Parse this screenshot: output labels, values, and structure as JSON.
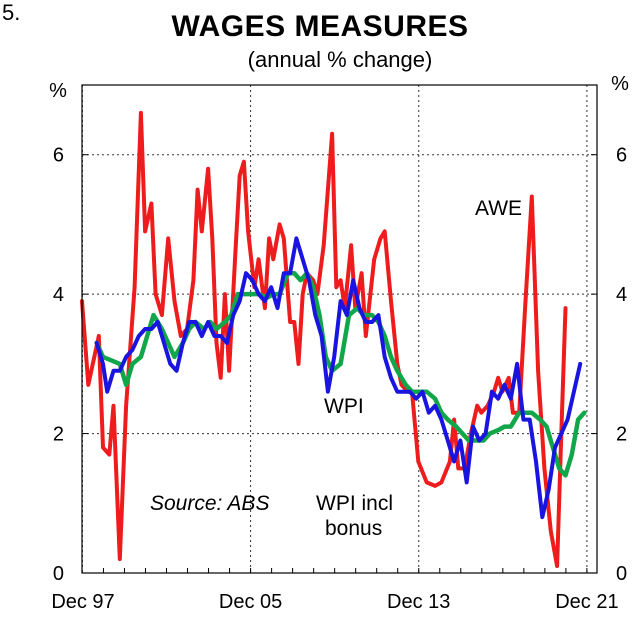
{
  "figure_number": "5.",
  "chart_data": {
    "type": "line",
    "title": "WAGES MEASURES",
    "subtitle": "(annual % change)",
    "unit_left": "%",
    "unit_right": "%",
    "x_tick_labels": [
      "Dec 97",
      "Dec 05",
      "Dec 13",
      "Dec 21"
    ],
    "x_tick_years": [
      1997.92,
      2005.92,
      2013.92,
      2021.92
    ],
    "x_range": [
      1997.9,
      2022.4
    ],
    "y_ticks": [
      "0",
      "2",
      "4",
      "6"
    ],
    "ylim": [
      0,
      7
    ],
    "grid": "horizontal dashed",
    "source": "Source: ABS",
    "series": [
      {
        "name": "AWE",
        "color": "#ee1c1c",
        "points": [
          [
            1997.9,
            3.9
          ],
          [
            1998.2,
            2.7
          ],
          [
            1998.7,
            3.4
          ],
          [
            1998.9,
            1.8
          ],
          [
            1999.2,
            1.7
          ],
          [
            1999.4,
            2.4
          ],
          [
            1999.7,
            0.2
          ],
          [
            2000.0,
            2.4
          ],
          [
            2000.4,
            4.1
          ],
          [
            2000.7,
            6.6
          ],
          [
            2000.9,
            4.9
          ],
          [
            2001.2,
            5.3
          ],
          [
            2001.4,
            4.0
          ],
          [
            2001.7,
            3.7
          ],
          [
            2002.0,
            4.8
          ],
          [
            2002.3,
            3.9
          ],
          [
            2002.6,
            3.4
          ],
          [
            2002.9,
            3.5
          ],
          [
            2003.2,
            4.2
          ],
          [
            2003.4,
            5.5
          ],
          [
            2003.6,
            4.9
          ],
          [
            2003.9,
            5.8
          ],
          [
            2004.1,
            4.8
          ],
          [
            2004.3,
            3.3
          ],
          [
            2004.5,
            2.8
          ],
          [
            2004.7,
            4.0
          ],
          [
            2004.9,
            2.9
          ],
          [
            2005.2,
            4.6
          ],
          [
            2005.4,
            5.7
          ],
          [
            2005.6,
            5.9
          ],
          [
            2005.8,
            4.9
          ],
          [
            2006.1,
            4.1
          ],
          [
            2006.3,
            4.5
          ],
          [
            2006.6,
            3.8
          ],
          [
            2006.8,
            4.8
          ],
          [
            2007.0,
            4.5
          ],
          [
            2007.3,
            5.0
          ],
          [
            2007.5,
            4.8
          ],
          [
            2007.8,
            3.6
          ],
          [
            2008.0,
            3.6
          ],
          [
            2008.2,
            3.0
          ],
          [
            2008.4,
            4.0
          ],
          [
            2008.6,
            4.3
          ],
          [
            2008.9,
            4.2
          ],
          [
            2009.1,
            4.0
          ],
          [
            2009.4,
            4.7
          ],
          [
            2009.6,
            5.5
          ],
          [
            2009.8,
            6.3
          ],
          [
            2010.0,
            4.1
          ],
          [
            2010.2,
            4.2
          ],
          [
            2010.4,
            3.8
          ],
          [
            2010.7,
            4.7
          ],
          [
            2010.9,
            3.8
          ],
          [
            2011.2,
            4.3
          ],
          [
            2011.4,
            3.4
          ],
          [
            2011.8,
            4.5
          ],
          [
            2012.1,
            4.8
          ],
          [
            2012.3,
            4.9
          ],
          [
            2012.6,
            3.9
          ],
          [
            2012.9,
            3.0
          ],
          [
            2013.1,
            2.7
          ],
          [
            2013.4,
            2.6
          ],
          [
            2013.6,
            2.6
          ],
          [
            2013.9,
            1.6
          ],
          [
            2014.3,
            1.3
          ],
          [
            2014.7,
            1.25
          ],
          [
            2015.0,
            1.3
          ],
          [
            2015.4,
            1.6
          ],
          [
            2015.6,
            2.2
          ],
          [
            2015.8,
            1.5
          ],
          [
            2016.1,
            1.5
          ],
          [
            2016.4,
            2.0
          ],
          [
            2016.7,
            2.4
          ],
          [
            2016.9,
            2.3
          ],
          [
            2017.2,
            2.4
          ],
          [
            2017.5,
            2.6
          ],
          [
            2017.7,
            2.8
          ],
          [
            2017.9,
            2.6
          ],
          [
            2018.2,
            2.8
          ],
          [
            2018.4,
            2.3
          ],
          [
            2018.7,
            2.3
          ],
          [
            2019.0,
            3.9
          ],
          [
            2019.3,
            5.4
          ],
          [
            2019.6,
            2.9
          ],
          [
            2019.9,
            1.5
          ],
          [
            2020.2,
            0.6
          ],
          [
            2020.5,
            0.1
          ],
          [
            2020.7,
            2.0
          ],
          [
            2020.9,
            3.8
          ]
        ]
      },
      {
        "name": "WPI",
        "color": "#12a64a",
        "points": [
          [
            1998.6,
            3.3
          ],
          [
            1998.9,
            3.1
          ],
          [
            1999.3,
            3.05
          ],
          [
            1999.7,
            3.0
          ],
          [
            2000.0,
            2.7
          ],
          [
            2000.3,
            3.0
          ],
          [
            2000.7,
            3.1
          ],
          [
            2001.0,
            3.4
          ],
          [
            2001.3,
            3.7
          ],
          [
            2001.7,
            3.5
          ],
          [
            2002.0,
            3.3
          ],
          [
            2002.3,
            3.1
          ],
          [
            2002.7,
            3.3
          ],
          [
            2003.0,
            3.5
          ],
          [
            2003.3,
            3.6
          ],
          [
            2003.7,
            3.5
          ],
          [
            2004.0,
            3.6
          ],
          [
            2004.3,
            3.5
          ],
          [
            2004.7,
            3.6
          ],
          [
            2005.0,
            3.7
          ],
          [
            2005.3,
            4.0
          ],
          [
            2005.7,
            4.0
          ],
          [
            2006.0,
            4.0
          ],
          [
            2006.3,
            4.0
          ],
          [
            2006.7,
            3.95
          ],
          [
            2007.0,
            4.0
          ],
          [
            2007.3,
            4.0
          ],
          [
            2007.7,
            4.3
          ],
          [
            2008.0,
            4.3
          ],
          [
            2008.3,
            4.2
          ],
          [
            2008.6,
            4.3
          ],
          [
            2008.9,
            4.1
          ],
          [
            2009.2,
            3.7
          ],
          [
            2009.5,
            3.1
          ],
          [
            2009.8,
            2.9
          ],
          [
            2010.2,
            3.0
          ],
          [
            2010.6,
            3.7
          ],
          [
            2011.0,
            3.8
          ],
          [
            2011.3,
            3.7
          ],
          [
            2011.7,
            3.7
          ],
          [
            2012.0,
            3.6
          ],
          [
            2012.3,
            3.4
          ],
          [
            2012.6,
            3.1
          ],
          [
            2012.9,
            2.9
          ],
          [
            2013.3,
            2.7
          ],
          [
            2013.6,
            2.6
          ],
          [
            2013.9,
            2.6
          ],
          [
            2014.3,
            2.6
          ],
          [
            2014.7,
            2.5
          ],
          [
            2015.0,
            2.3
          ],
          [
            2015.3,
            2.2
          ],
          [
            2015.7,
            2.1
          ],
          [
            2016.0,
            2.0
          ],
          [
            2016.3,
            1.9
          ],
          [
            2016.7,
            1.9
          ],
          [
            2017.0,
            1.9
          ],
          [
            2017.3,
            2.0
          ],
          [
            2017.7,
            2.05
          ],
          [
            2018.0,
            2.1
          ],
          [
            2018.3,
            2.1
          ],
          [
            2018.7,
            2.3
          ],
          [
            2019.0,
            2.3
          ],
          [
            2019.3,
            2.3
          ],
          [
            2019.7,
            2.2
          ],
          [
            2020.0,
            2.1
          ],
          [
            2020.3,
            1.8
          ],
          [
            2020.6,
            1.5
          ],
          [
            2020.9,
            1.4
          ],
          [
            2021.2,
            1.7
          ],
          [
            2021.5,
            2.2
          ],
          [
            2021.8,
            2.3
          ]
        ]
      },
      {
        "name": "WPI incl bonus",
        "color": "#1a14e0",
        "points": [
          [
            1998.6,
            3.3
          ],
          [
            1998.9,
            3.0
          ],
          [
            1999.1,
            2.6
          ],
          [
            1999.4,
            2.9
          ],
          [
            1999.7,
            2.9
          ],
          [
            2000.0,
            3.1
          ],
          [
            2000.3,
            3.2
          ],
          [
            2000.6,
            3.4
          ],
          [
            2000.9,
            3.5
          ],
          [
            2001.2,
            3.5
          ],
          [
            2001.5,
            3.6
          ],
          [
            2001.8,
            3.3
          ],
          [
            2002.1,
            3.0
          ],
          [
            2002.4,
            2.9
          ],
          [
            2002.7,
            3.3
          ],
          [
            2003.0,
            3.6
          ],
          [
            2003.3,
            3.6
          ],
          [
            2003.6,
            3.4
          ],
          [
            2003.9,
            3.6
          ],
          [
            2004.2,
            3.4
          ],
          [
            2004.5,
            3.4
          ],
          [
            2004.8,
            3.3
          ],
          [
            2005.1,
            3.7
          ],
          [
            2005.4,
            3.9
          ],
          [
            2005.7,
            4.3
          ],
          [
            2006.0,
            4.2
          ],
          [
            2006.3,
            4.0
          ],
          [
            2006.6,
            3.9
          ],
          [
            2006.9,
            4.1
          ],
          [
            2007.2,
            3.8
          ],
          [
            2007.5,
            4.3
          ],
          [
            2007.8,
            4.3
          ],
          [
            2008.1,
            4.8
          ],
          [
            2008.4,
            4.5
          ],
          [
            2008.7,
            4.2
          ],
          [
            2009.0,
            3.7
          ],
          [
            2009.3,
            3.4
          ],
          [
            2009.6,
            2.6
          ],
          [
            2009.9,
            3.1
          ],
          [
            2010.2,
            3.9
          ],
          [
            2010.5,
            3.7
          ],
          [
            2010.8,
            4.2
          ],
          [
            2011.1,
            3.8
          ],
          [
            2011.4,
            3.6
          ],
          [
            2011.7,
            3.6
          ],
          [
            2012.0,
            3.7
          ],
          [
            2012.3,
            3.1
          ],
          [
            2012.6,
            2.8
          ],
          [
            2012.9,
            2.6
          ],
          [
            2013.2,
            2.6
          ],
          [
            2013.5,
            2.6
          ],
          [
            2013.8,
            2.5
          ],
          [
            2014.1,
            2.6
          ],
          [
            2014.4,
            2.3
          ],
          [
            2014.7,
            2.4
          ],
          [
            2015.0,
            2.2
          ],
          [
            2015.3,
            1.9
          ],
          [
            2015.6,
            1.6
          ],
          [
            2015.9,
            1.9
          ],
          [
            2016.2,
            1.3
          ],
          [
            2016.5,
            2.1
          ],
          [
            2016.8,
            1.9
          ],
          [
            2017.1,
            2.0
          ],
          [
            2017.4,
            2.6
          ],
          [
            2017.7,
            2.5
          ],
          [
            2018.0,
            2.7
          ],
          [
            2018.3,
            2.5
          ],
          [
            2018.6,
            3.0
          ],
          [
            2018.9,
            2.2
          ],
          [
            2019.2,
            2.2
          ],
          [
            2019.5,
            1.6
          ],
          [
            2019.8,
            0.8
          ],
          [
            2020.1,
            1.2
          ],
          [
            2020.4,
            1.8
          ],
          [
            2020.7,
            2.0
          ],
          [
            2021.0,
            2.2
          ],
          [
            2021.3,
            2.6
          ],
          [
            2021.6,
            3.0
          ]
        ]
      }
    ],
    "annotations": [
      {
        "text": "AWE",
        "color": "#ee1c1c"
      },
      {
        "text": "WPI",
        "color": "#12a64a"
      },
      {
        "text": "WPI incl",
        "color": "#1a14e0"
      },
      {
        "text": "bonus",
        "color": "#1a14e0"
      }
    ]
  }
}
